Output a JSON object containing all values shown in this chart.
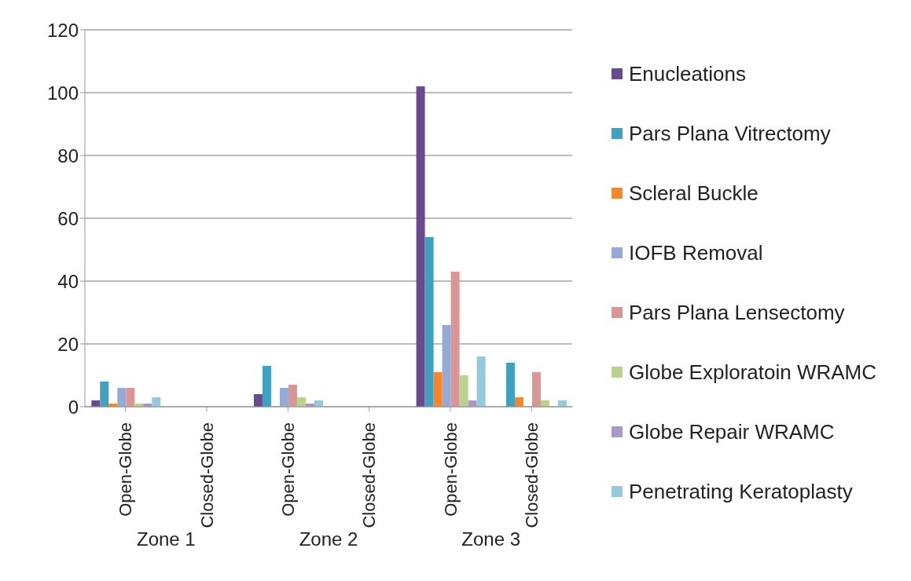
{
  "chart_data": {
    "type": "bar",
    "categories": [
      "Open-Globe",
      "Closed-Globe",
      "Open-Globe",
      "Closed-Globe",
      "Open-Globe",
      "Closed-Globe"
    ],
    "annotations": [
      "Zone 1",
      "Zone 2",
      "Zone 3"
    ],
    "series": [
      {
        "name": "Enucleations",
        "color": "#6a4a8f",
        "values": [
          2,
          0,
          4,
          0,
          102,
          0
        ]
      },
      {
        "name": "Pars Plana Vitrectomy",
        "color": "#3fa0bf",
        "values": [
          8,
          0,
          13,
          0,
          54,
          14
        ]
      },
      {
        "name": "Scleral Buckle",
        "color": "#f7862b",
        "values": [
          1,
          0,
          0,
          0,
          11,
          3
        ]
      },
      {
        "name": "IOFB Removal",
        "color": "#96aad6",
        "values": [
          6,
          0,
          6,
          0,
          26,
          0
        ]
      },
      {
        "name": "Pars Plana Lensectomy",
        "color": "#d99694",
        "values": [
          6,
          0,
          7,
          0,
          43,
          11
        ]
      },
      {
        "name": "Globe Exploratoin WRAMC",
        "color": "#b9d38f",
        "values": [
          1,
          0,
          3,
          0,
          10,
          2
        ]
      },
      {
        "name": "Globe Repair WRAMC",
        "color": "#ab97c5",
        "values": [
          1,
          0,
          1,
          0,
          2,
          0
        ]
      },
      {
        "name": "Penetrating Keratoplasty",
        "color": "#95c9dc",
        "values": [
          3,
          0,
          2,
          0,
          16,
          2
        ]
      }
    ],
    "ylim": [
      0,
      120
    ],
    "yticks": [
      0,
      20,
      40,
      60,
      80,
      100,
      120
    ],
    "grid": "y",
    "legend": "right"
  }
}
